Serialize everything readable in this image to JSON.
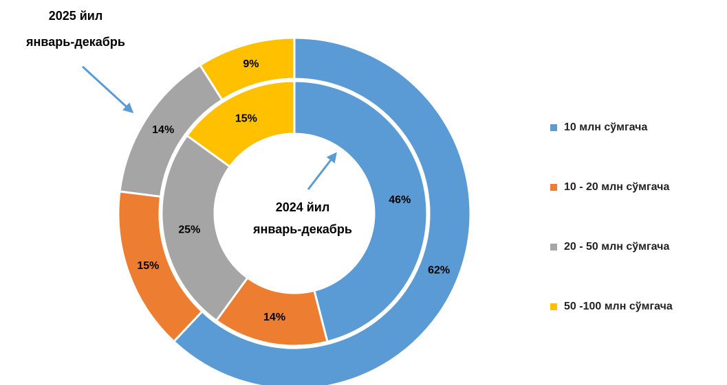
{
  "chart_data": {
    "type": "donut",
    "categories": [
      "10 млн сўмгача",
      "10 - 20 млн сўмгача",
      "20 - 50 млн сўмгача",
      "50 -100 млн сўмгача"
    ],
    "colors": [
      "#5b9bd5",
      "#ed7d31",
      "#a5a5a5",
      "#ffc000"
    ],
    "series": [
      {
        "values": [
          62,
          15,
          14,
          9
        ],
        "value_labels": [
          "62%",
          "15%",
          "14%",
          "9%"
        ]
      },
      {
        "values": [
          46,
          14,
          25,
          15
        ],
        "value_labels": [
          "46%",
          "14%",
          "25%",
          "15%"
        ]
      }
    ],
    "annotations": [
      [
        "2025 йил",
        "январь-декабрь"
      ],
      [
        "2024 йил",
        "январь-декабрь"
      ]
    ],
    "legend": "right"
  }
}
